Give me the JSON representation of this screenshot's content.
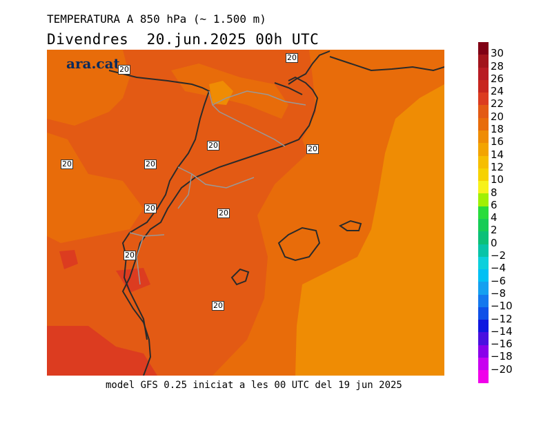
{
  "header": {
    "title": "TEMPERATURA A 850 hPa (~ 1.500 m)",
    "subtitle": "Divendres  20.jun.2025 00h UTC"
  },
  "logo": {
    "text": "ara.cat"
  },
  "footer": {
    "text": "model GFS 0.25 iniciat a les 00 UTC del 19 jun 2025"
  },
  "contour_labels": [
    "20",
    "20",
    "20",
    "20",
    "20",
    "20",
    "20",
    "20",
    "20",
    "20"
  ],
  "legend": {
    "labels": [
      "30",
      "28",
      "26",
      "24",
      "22",
      "20",
      "18",
      "16",
      "14",
      "12",
      "10",
      "8",
      "6",
      "4",
      "2",
      "0",
      "−2",
      "−4",
      "−6",
      "−8",
      "−10",
      "−12",
      "−14",
      "−16",
      "−18",
      "−20"
    ],
    "colors": [
      "#800014",
      "#a2141c",
      "#b81c24",
      "#c8261e",
      "#dc3c20",
      "#e35a14",
      "#e86c0a",
      "#ef8c04",
      "#f3a400",
      "#f6be00",
      "#f6d200",
      "#f7f21b",
      "#a0f004",
      "#28dc3c",
      "#16cc56",
      "#0cc078",
      "#08c4a8",
      "#0cd0dc",
      "#00c0f4",
      "#14a0f0",
      "#1478ee",
      "#0e50e8",
      "#1018e0",
      "#4a10e0",
      "#8a00ea",
      "#c800f0",
      "#f000ea"
    ],
    "color_at_bottom": "#f000ea"
  },
  "map": {
    "colors": {
      "t20_22": "#e35a14",
      "t18_20": "#e86c0a",
      "t22_24": "#dc3c20",
      "t16_18": "#ef8c04",
      "coast": "#2a2a2a",
      "border": "#888888"
    }
  }
}
